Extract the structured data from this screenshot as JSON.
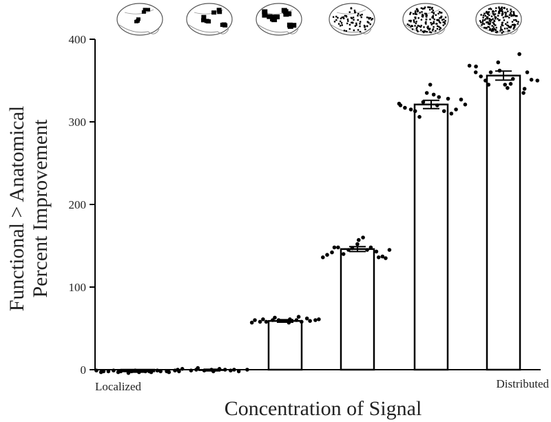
{
  "chart_data": {
    "type": "bar",
    "ylabel": [
      "Functional > Anatomical",
      "Percent Improvement"
    ],
    "xlabel": "Concentration of Signal",
    "x_end_labels": {
      "left": "Localized",
      "right": "Distributed"
    },
    "ylim": [
      0,
      400
    ],
    "yticks": [
      0,
      100,
      200,
      300,
      400
    ],
    "grid": false,
    "legend": "none",
    "bar_color": "#ffffff",
    "edge_color": "#000000",
    "bars": [
      {
        "mean": -2,
        "sem": 1.0,
        "points": [
          -1,
          -3,
          -2,
          -2,
          -1,
          -3,
          -2,
          -4,
          -2,
          -1,
          -3,
          -2,
          -2,
          -3,
          -1,
          -2,
          -2,
          -3,
          -1,
          -2
        ]
      },
      {
        "mean": -0.5,
        "sem": 1.0,
        "points": [
          0,
          1,
          -1,
          0,
          2,
          -1,
          0,
          -2,
          1,
          0,
          -1,
          0,
          -2,
          0
        ]
      },
      {
        "mean": 59,
        "sem": 1.5,
        "points": [
          57,
          60,
          58,
          61,
          58,
          60,
          63,
          60,
          59,
          57,
          61,
          60,
          64,
          58,
          62,
          59,
          60,
          61
        ]
      },
      {
        "mean": 146,
        "sem": 3.0,
        "points": [
          136,
          139,
          142,
          148,
          148,
          140,
          145,
          147,
          152,
          157,
          160,
          145,
          148,
          143,
          136,
          137,
          135,
          145
        ]
      },
      {
        "mean": 321,
        "sem": 5.0,
        "points": [
          322,
          320,
          317,
          315,
          313,
          306,
          324,
          335,
          345,
          333,
          320,
          330,
          313,
          328,
          310,
          315,
          327,
          321
        ]
      },
      {
        "mean": 356,
        "sem": 5.5,
        "points": [
          368,
          367,
          360,
          355,
          350,
          345,
          360,
          372,
          362,
          345,
          341,
          346,
          352,
          382,
          335,
          340,
          360,
          351,
          350
        ]
      }
    ],
    "brain_maps": 6
  }
}
